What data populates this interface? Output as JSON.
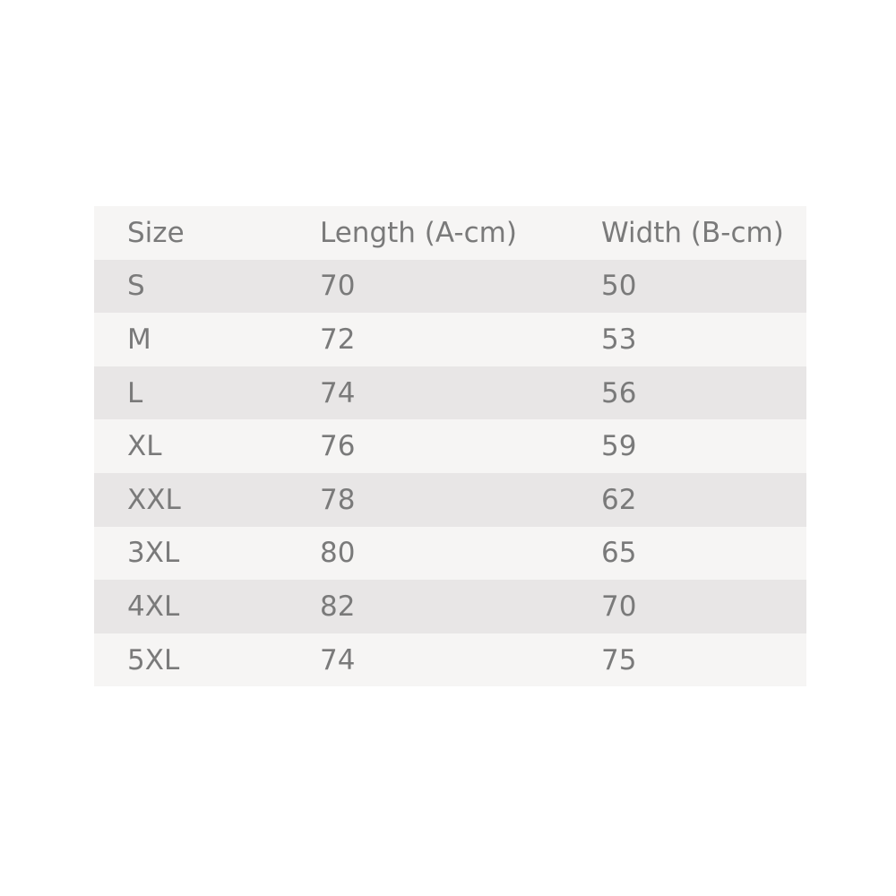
{
  "table": {
    "header": [
      "Size",
      "Length (A-cm)",
      "Width (B-cm)"
    ],
    "rows": [
      [
        "S",
        70,
        50
      ],
      [
        "M",
        72,
        53
      ],
      [
        "L",
        74,
        56
      ],
      [
        "XL",
        76,
        59
      ],
      [
        "XXL",
        78,
        62
      ],
      [
        "3XL",
        80,
        65
      ],
      [
        "4XL",
        82,
        70
      ],
      [
        "5XL",
        74,
        75
      ]
    ]
  }
}
